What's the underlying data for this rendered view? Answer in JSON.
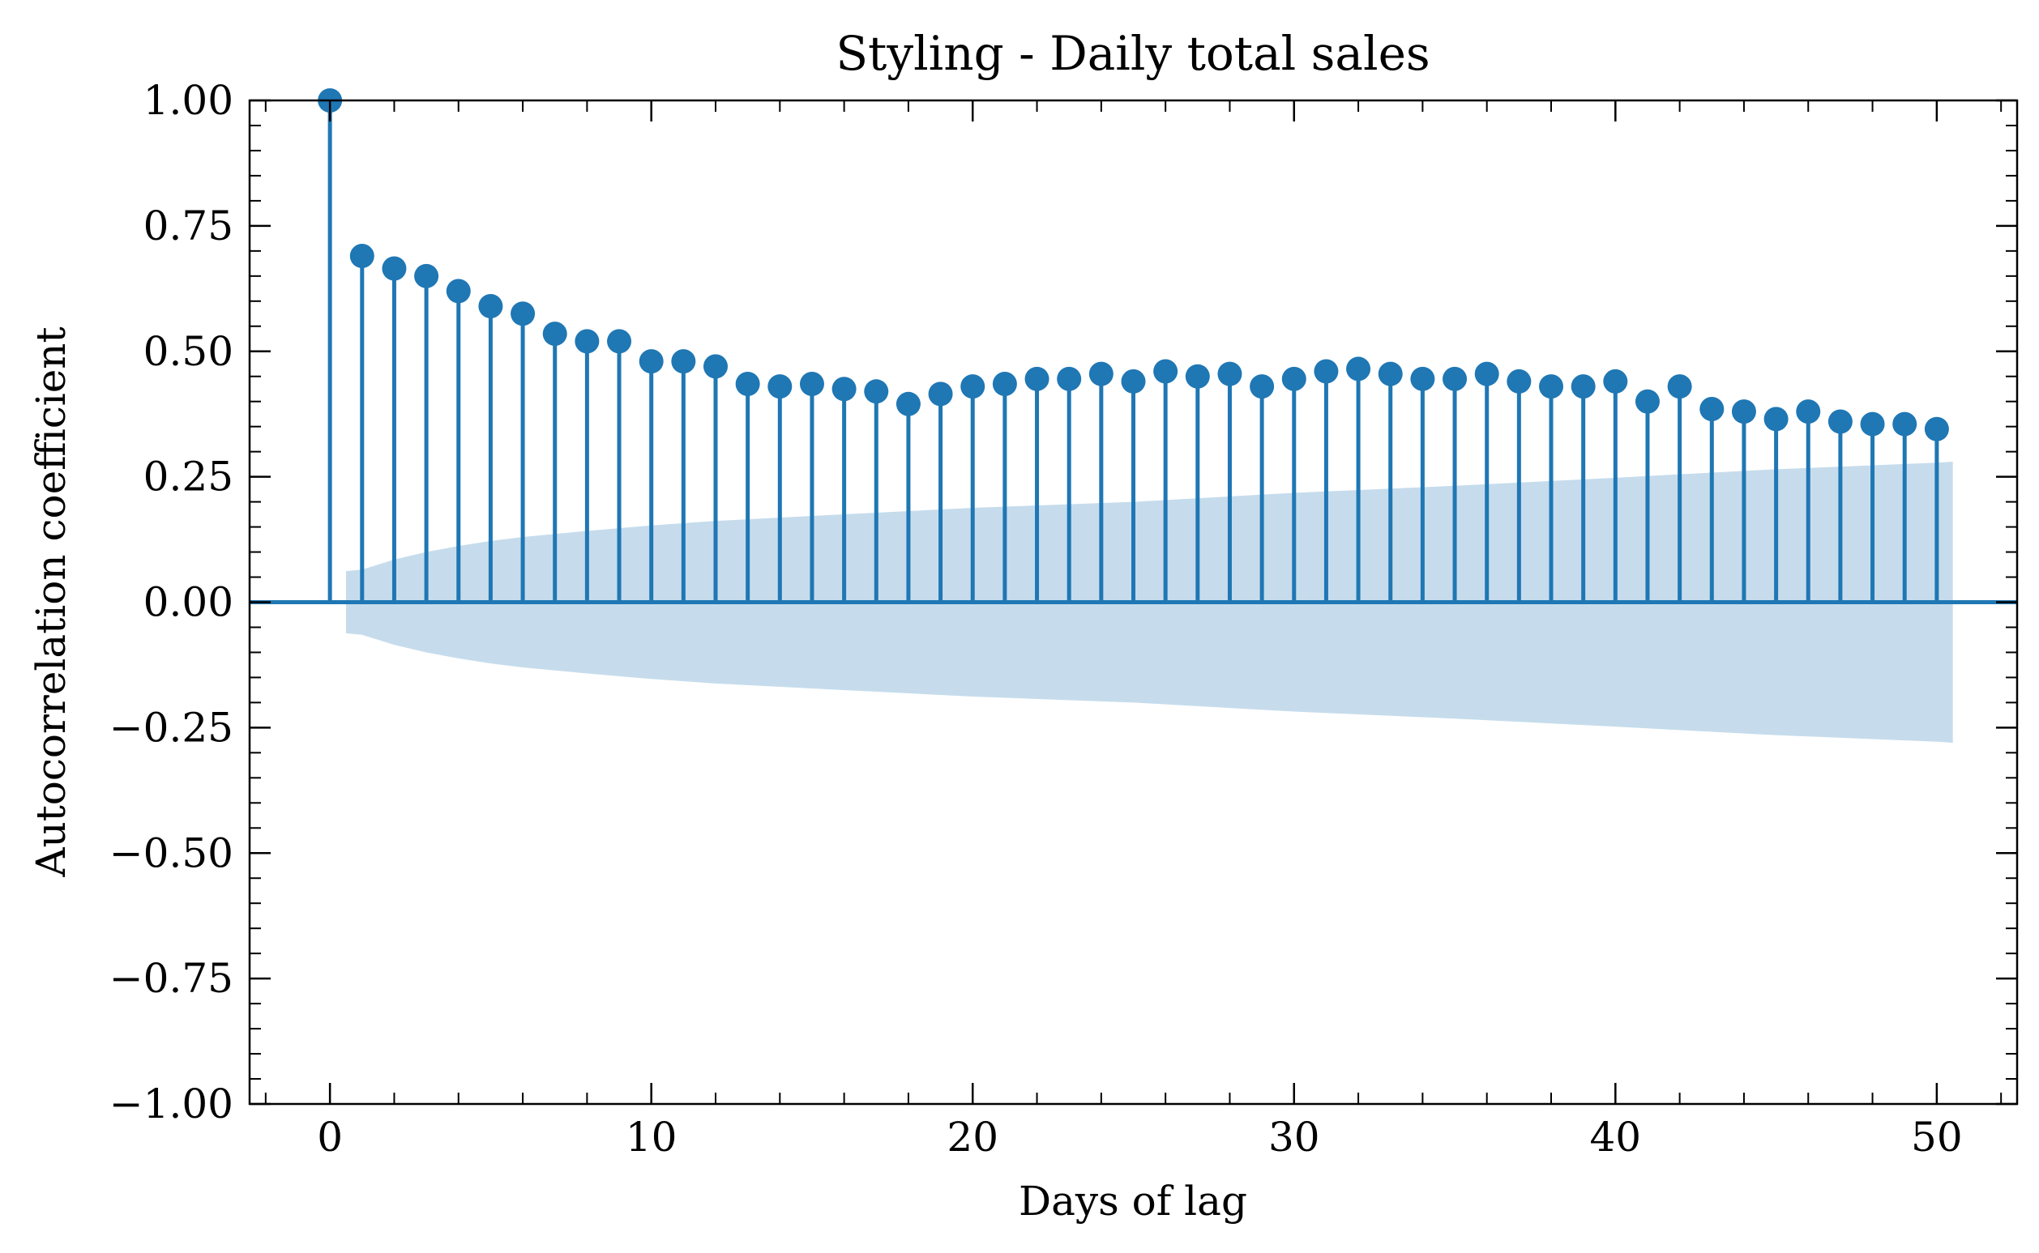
{
  "colors": {
    "stem": "#1f77b4",
    "marker": "#1f77b4",
    "confidence_band": "#c6dcec",
    "axis": "#000000",
    "background": "#ffffff"
  },
  "chart_data": {
    "type": "stem",
    "title": "Styling - Daily total sales",
    "xlabel": "Days of lag",
    "ylabel": "Autocorrelation coefficient",
    "xlim": [
      -2.5,
      52.5
    ],
    "ylim": [
      -1.0,
      1.0
    ],
    "x_ticks": [
      0,
      10,
      20,
      30,
      40,
      50
    ],
    "x_tick_labels": [
      "0",
      "10",
      "20",
      "30",
      "40",
      "50"
    ],
    "y_ticks": [
      -1.0,
      -0.75,
      -0.5,
      -0.25,
      0.0,
      0.25,
      0.5,
      0.75,
      1.0
    ],
    "y_tick_labels": [
      "−1.00",
      "−0.75",
      "−0.50",
      "−0.25",
      "0.00",
      "0.25",
      "0.50",
      "0.75",
      "1.00"
    ],
    "grid": false,
    "legend": "none",
    "lags": [
      0,
      1,
      2,
      3,
      4,
      5,
      6,
      7,
      8,
      9,
      10,
      11,
      12,
      13,
      14,
      15,
      16,
      17,
      18,
      19,
      20,
      21,
      22,
      23,
      24,
      25,
      26,
      27,
      28,
      29,
      30,
      31,
      32,
      33,
      34,
      35,
      36,
      37,
      38,
      39,
      40,
      41,
      42,
      43,
      44,
      45,
      46,
      47,
      48,
      49,
      50
    ],
    "acf": [
      1.0,
      0.69,
      0.665,
      0.65,
      0.62,
      0.59,
      0.575,
      0.535,
      0.52,
      0.52,
      0.48,
      0.48,
      0.47,
      0.435,
      0.43,
      0.435,
      0.425,
      0.42,
      0.395,
      0.415,
      0.43,
      0.435,
      0.445,
      0.445,
      0.455,
      0.44,
      0.46,
      0.45,
      0.455,
      0.43,
      0.445,
      0.46,
      0.465,
      0.455,
      0.445,
      0.445,
      0.455,
      0.44,
      0.43,
      0.43,
      0.44,
      0.4,
      0.43,
      0.385,
      0.38,
      0.365,
      0.38,
      0.36,
      0.355,
      0.355,
      0.345
    ],
    "confidence_band": {
      "x": [
        0.5,
        1,
        2,
        3,
        4,
        5,
        6,
        8,
        10,
        12,
        15,
        20,
        25,
        30,
        35,
        40,
        45,
        50,
        50.5
      ],
      "upper": [
        0.062,
        0.065,
        0.085,
        0.1,
        0.112,
        0.122,
        0.13,
        0.142,
        0.153,
        0.162,
        0.172,
        0.188,
        0.2,
        0.218,
        0.232,
        0.248,
        0.265,
        0.278,
        0.28
      ],
      "lower": [
        -0.062,
        -0.065,
        -0.085,
        -0.1,
        -0.112,
        -0.122,
        -0.13,
        -0.142,
        -0.153,
        -0.162,
        -0.172,
        -0.188,
        -0.2,
        -0.218,
        -0.232,
        -0.248,
        -0.265,
        -0.278,
        -0.28
      ]
    }
  }
}
